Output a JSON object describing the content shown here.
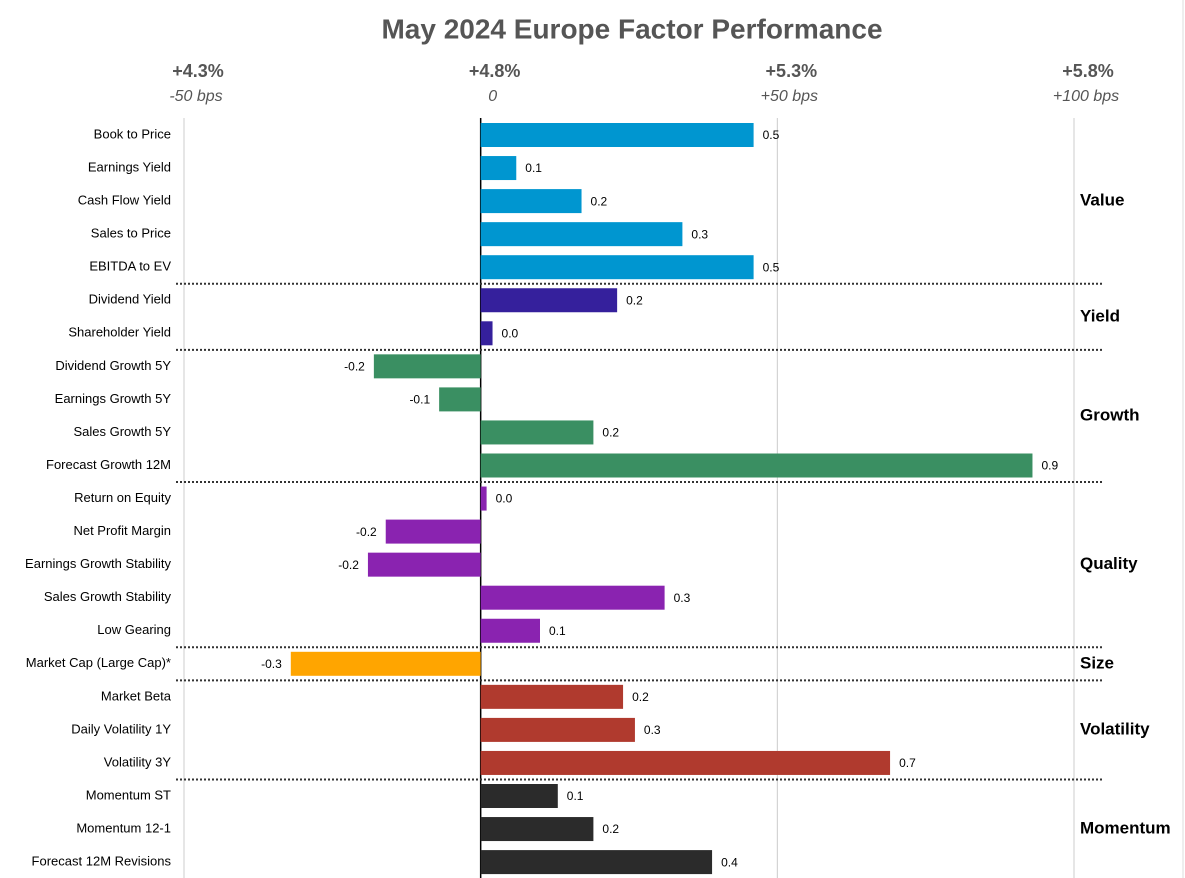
{
  "chart_data": {
    "type": "bar",
    "orientation": "horizontal",
    "title": "May 2024 Europe Factor Performance",
    "xlim": [
      -0.5,
      1.0
    ],
    "xticks": [
      {
        "value": -0.5,
        "label": "-50 bps"
      },
      0,
      {
        "value": 0.5,
        "label": "+50 bps"
      },
      {
        "value": 1.0,
        "label": "+100 bps"
      }
    ],
    "x2lim": [
      4.3,
      5.8
    ],
    "x2ticks": [
      {
        "value": 4.3,
        "label": "+4.3%"
      },
      {
        "value": 4.8,
        "label": "+4.8%"
      },
      {
        "value": 5.3,
        "label": "+5.3%"
      },
      {
        "value": 5.8,
        "label": "+5.8%"
      }
    ],
    "grid": true,
    "series": [
      {
        "name": "Value",
        "color": "#0096d0",
        "categories": [
          "Book to Price",
          "Earnings Yield",
          "Cash Flow Yield",
          "Sales to Price",
          "EBITDA to EV"
        ],
        "values": [
          0.46,
          0.06,
          0.17,
          0.34,
          0.46
        ],
        "value_labels": [
          "0.5",
          "0.1",
          "0.2",
          "0.3",
          "0.5"
        ]
      },
      {
        "name": "Yield",
        "color": "#35209c",
        "categories": [
          "Dividend Yield",
          "Shareholder Yield"
        ],
        "values": [
          0.23,
          0.02
        ],
        "value_labels": [
          "0.2",
          "0.0"
        ]
      },
      {
        "name": "Growth",
        "color": "#3a8f62",
        "categories": [
          "Dividend Growth 5Y",
          "Earnings Growth 5Y",
          "Sales Growth 5Y",
          "Forecast Growth 12M"
        ],
        "values": [
          -0.18,
          -0.07,
          0.19,
          0.93
        ],
        "value_labels": [
          "-0.2",
          "-0.1",
          "0.2",
          "0.9"
        ]
      },
      {
        "name": "Quality",
        "color": "#8a23b0",
        "categories": [
          "Return on Equity",
          "Net Profit Margin",
          "Earnings Growth Stability",
          "Sales Growth Stability",
          "Low Gearing"
        ],
        "values": [
          0.01,
          -0.16,
          -0.19,
          0.31,
          0.1
        ],
        "value_labels": [
          "0.0",
          "-0.2",
          "-0.2",
          "0.3",
          "0.1"
        ]
      },
      {
        "name": "Size",
        "color": "#ffa500",
        "categories": [
          "Market Cap (Large Cap)*"
        ],
        "values": [
          -0.32
        ],
        "value_labels": [
          "-0.3"
        ]
      },
      {
        "name": "Volatility",
        "color": "#b03a2e",
        "categories": [
          "Market Beta",
          "Daily Volatility 1Y",
          "Volatility 3Y"
        ],
        "values": [
          0.24,
          0.26,
          0.69
        ],
        "value_labels": [
          "0.2",
          "0.3",
          "0.7"
        ]
      },
      {
        "name": "Momentum",
        "color": "#2b2b2b",
        "categories": [
          "Momentum ST",
          "Momentum 12-1",
          "Forecast 12M Revisions"
        ],
        "values": [
          0.13,
          0.19,
          0.39
        ],
        "value_labels": [
          "0.1",
          "0.2",
          "0.4"
        ]
      }
    ]
  }
}
